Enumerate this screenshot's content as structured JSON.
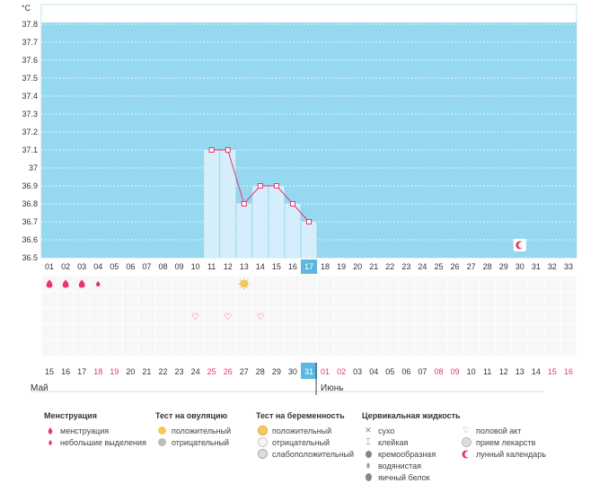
{
  "unit": "°C",
  "chart_data": {
    "type": "line",
    "ylim": [
      36.5,
      37.9
    ],
    "y_ticks": [
      "37.8",
      "37.7",
      "37.6",
      "37.5",
      "37.4",
      "37.3",
      "37.2",
      "37.1",
      "37",
      "36.9",
      "36.8",
      "36.7",
      "36.6",
      "36.5"
    ],
    "cycle_days": [
      "01",
      "02",
      "03",
      "04",
      "05",
      "06",
      "07",
      "08",
      "09",
      "10",
      "11",
      "12",
      "13",
      "14",
      "15",
      "16",
      "17",
      "18",
      "19",
      "20",
      "21",
      "22",
      "23",
      "24",
      "25",
      "26",
      "27",
      "28",
      "29",
      "30",
      "31",
      "32",
      "33"
    ],
    "current_day": "17",
    "points": [
      {
        "day": 11,
        "temp": 37.1
      },
      {
        "day": 12,
        "temp": 37.1
      },
      {
        "day": 13,
        "temp": 36.8
      },
      {
        "day": 14,
        "temp": 36.9
      },
      {
        "day": 15,
        "temp": 36.9
      },
      {
        "day": 16,
        "temp": 36.8
      },
      {
        "day": 17,
        "temp": 36.7
      }
    ],
    "colors": {
      "fill": "#95d8f0",
      "area": "#d4effb",
      "line": "#e8356e",
      "highlight": "#5bb8e0"
    }
  },
  "calendar": {
    "dates": [
      {
        "t": "15",
        "red": false
      },
      {
        "t": "16",
        "red": false
      },
      {
        "t": "17",
        "red": false
      },
      {
        "t": "18",
        "red": true
      },
      {
        "t": "19",
        "red": true
      },
      {
        "t": "20",
        "red": false
      },
      {
        "t": "21",
        "red": false
      },
      {
        "t": "22",
        "red": false
      },
      {
        "t": "23",
        "red": false
      },
      {
        "t": "24",
        "red": false
      },
      {
        "t": "25",
        "red": true
      },
      {
        "t": "26",
        "red": true
      },
      {
        "t": "27",
        "red": false
      },
      {
        "t": "28",
        "red": false
      },
      {
        "t": "29",
        "red": false
      },
      {
        "t": "30",
        "red": false
      },
      {
        "t": "31",
        "red": false,
        "hl": true
      },
      {
        "t": "01",
        "red": true
      },
      {
        "t": "02",
        "red": true
      },
      {
        "t": "03",
        "red": false
      },
      {
        "t": "04",
        "red": false
      },
      {
        "t": "05",
        "red": false
      },
      {
        "t": "06",
        "red": false
      },
      {
        "t": "07",
        "red": false
      },
      {
        "t": "08",
        "red": true
      },
      {
        "t": "09",
        "red": true
      },
      {
        "t": "10",
        "red": false
      },
      {
        "t": "11",
        "red": false
      },
      {
        "t": "12",
        "red": false
      },
      {
        "t": "13",
        "red": false
      },
      {
        "t": "14",
        "red": false
      },
      {
        "t": "15",
        "red": true
      },
      {
        "t": "16",
        "red": true
      }
    ],
    "month1": "Май",
    "month2": "Июнь"
  },
  "markers": {
    "menstruation_days": [
      1,
      2,
      3
    ],
    "spotting_days": [
      4
    ],
    "ovulation_positive_days": [
      13
    ],
    "intercourse_days": [
      10,
      12,
      14
    ],
    "lunar_days": [
      30
    ]
  },
  "legend": {
    "menstruation": {
      "title": "Менструация",
      "items": [
        "менструация",
        "небольшие выделения"
      ]
    },
    "ovulation": {
      "title": "Тест на овуляцию",
      "items": [
        "положительный",
        "отрицательный"
      ]
    },
    "pregnancy": {
      "title": "Тест на беременность",
      "items": [
        "положительный",
        "отрицательный",
        "слабоположительный"
      ]
    },
    "cervical": {
      "title": "Цервикальная жидкость",
      "items": [
        "сухо",
        "клейкая",
        "кремообразная",
        "водянистая",
        "яичный белок"
      ]
    },
    "other": {
      "items": [
        "половой акт",
        "прием лекарств",
        "лунный календарь"
      ]
    }
  }
}
